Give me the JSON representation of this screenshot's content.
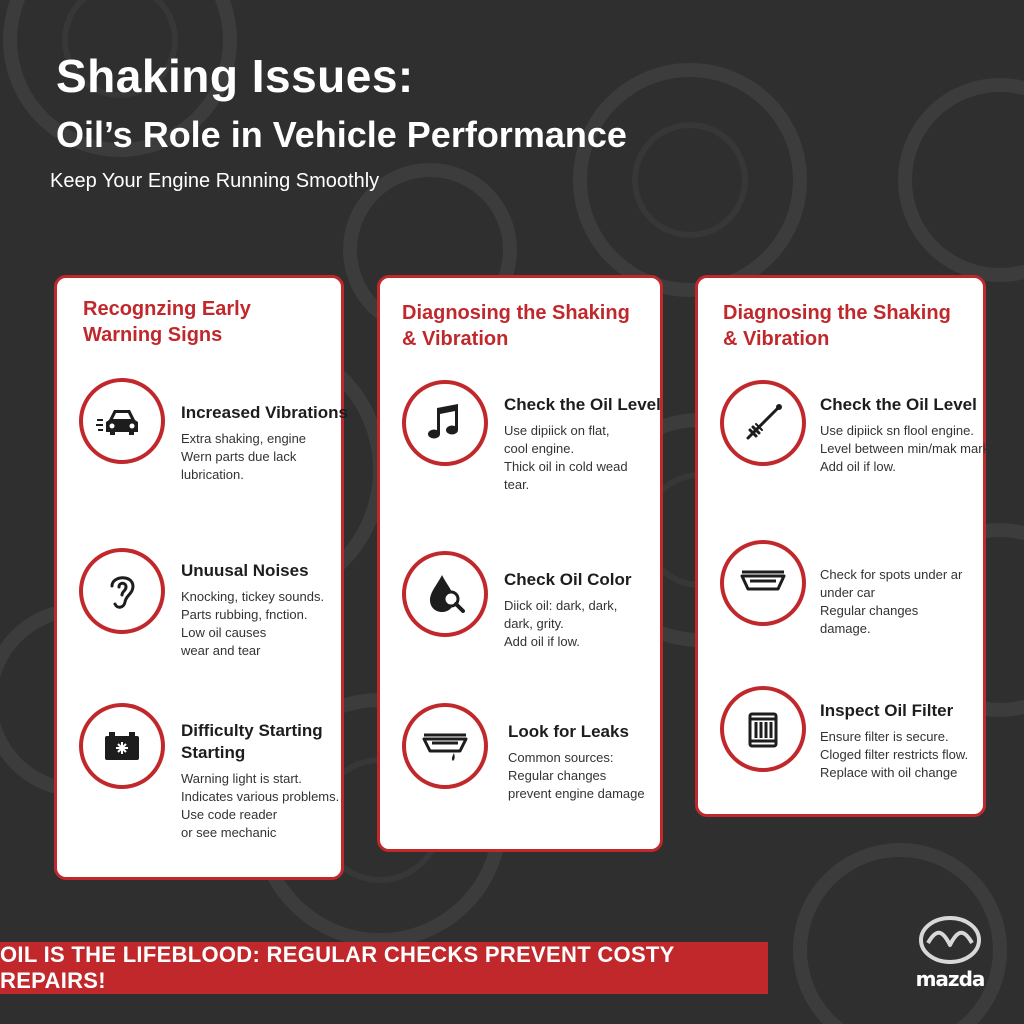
{
  "header": {
    "title": "Shaking Issues:",
    "subtitle": "Oil’s Role in Vehicle Performance",
    "tagline": "Keep Your Engine Running Smoothly"
  },
  "cards": [
    {
      "title_lines": [
        "Recognzing Early",
        "Warning Signs"
      ],
      "items": [
        {
          "icon": "car-icon",
          "title_lines": [
            "Increased Vibrations"
          ],
          "desc": [
            "Extra shaking, engine",
            "Wern parts due lack",
            "lubrication."
          ]
        },
        {
          "icon": "ear-icon",
          "title_lines": [
            "Unuusal Noises"
          ],
          "desc": [
            "Knocking, tickey sounds.",
            "Parts rubbing, fnction.",
            "Low oil causes",
            "wear and tear"
          ]
        },
        {
          "icon": "battery-icon",
          "title_lines": [
            "Difficulty Starting",
            "Starting"
          ],
          "desc": [
            "Warning light is start.",
            "Indicates various problems.",
            "Use code reader",
            "or see mechanic"
          ]
        }
      ]
    },
    {
      "title_lines": [
        "Diagnosing the Shaking",
        "& Vibration"
      ],
      "items": [
        {
          "icon": "music-note-icon",
          "title_lines": [
            "Check the Oil Level"
          ],
          "desc": [
            "Use dipiick on flat,",
            "cool engine.",
            "Thick oil in cold wead",
            "tear."
          ]
        },
        {
          "icon": "oil-drop-magnifier-icon",
          "title_lines": [
            "Check Oil Color"
          ],
          "desc": [
            "Diick oil: dark, dark,",
            "dark, grity.",
            "Add oil if low."
          ]
        },
        {
          "icon": "oil-pan-leak-icon",
          "title_lines": [
            "Look for Leaks"
          ],
          "desc": [
            "Common sources:",
            "Regular changes",
            "prevent engine damage"
          ]
        }
      ]
    },
    {
      "title_lines": [
        "Diagnosing the Shaking",
        "& Vibration"
      ],
      "items": [
        {
          "icon": "dipstick-icon",
          "title_lines": [
            "Check the Oil Level"
          ],
          "desc": [
            "Use dipiick sn flool engine.",
            "Level between min/mak mark",
            "Add oil if low."
          ]
        },
        {
          "icon": "oil-pan-icon",
          "title_lines": [],
          "desc": [
            "Check for spots under ar",
            "under car",
            "Regular changes",
            "damage."
          ]
        },
        {
          "icon": "oil-filter-icon",
          "title_lines": [
            "Inspect Oil Filter"
          ],
          "desc": [
            "Ensure filter is secure.",
            "Cloged filter restricts flow.",
            "Replace with oil change"
          ]
        }
      ]
    }
  ],
  "banner": {
    "text": "OIL IS THE LIFEBLOOD: REGULAR CHECKS PREVENT COSTY REPAIRS!"
  },
  "logo": {
    "text": "mazda"
  },
  "colors": {
    "accent": "#c0282c",
    "background": "#2f2f30",
    "card": "#ffffff"
  }
}
